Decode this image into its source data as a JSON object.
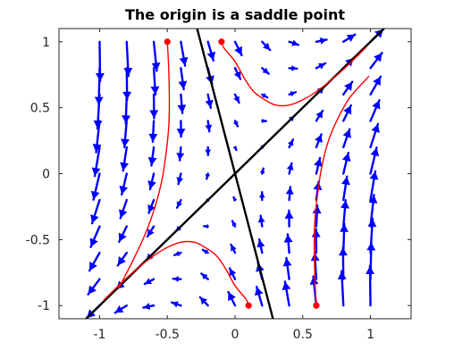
{
  "chart_data": {
    "type": "quiver",
    "title": "The origin is a saddle point",
    "xlabel": "",
    "ylabel": "",
    "xlim": [
      -1.3,
      1.3
    ],
    "ylim": [
      -1.1,
      1.1
    ],
    "grid": false,
    "x_ticks": [
      -1,
      -0.5,
      0,
      0.5,
      1
    ],
    "x_tick_labels": [
      "-1",
      "-0.5",
      "0",
      "0.5",
      "1"
    ],
    "y_ticks": [
      -1,
      -0.5,
      0,
      0.5,
      1
    ],
    "y_tick_labels": [
      "-1",
      "-0.5",
      "0",
      "0.5",
      "1"
    ],
    "vector_field": {
      "color": "#0000ff",
      "x_range": [
        -1.0,
        1.0
      ],
      "y_range": [
        -1.0,
        1.0
      ],
      "grid_size": 11,
      "formula": "dx/dt = x - y, dy/dt = -2x + y - 1.5y"
    },
    "eigenvector_lines": [
      {
        "points": [
          [
            -1.1,
            -1.1
          ],
          [
            1.1,
            1.1
          ]
        ],
        "color": "#000000"
      },
      {
        "points": [
          [
            -0.28,
            1.1
          ],
          [
            0.28,
            -1.1
          ]
        ],
        "color": "#000000"
      }
    ],
    "trajectories": {
      "color": "#ff0000",
      "initial_points": [
        [
          -0.5,
          1
        ],
        [
          -0.1,
          1
        ],
        [
          0.1,
          -1
        ],
        [
          0.6,
          -1
        ]
      ],
      "curves": [
        [
          [
            -0.5,
            1
          ],
          [
            -0.49,
            0.8
          ],
          [
            -0.485,
            0.55
          ],
          [
            -0.49,
            0.35
          ],
          [
            -0.51,
            0.15
          ],
          [
            -0.54,
            -0.05
          ],
          [
            -0.59,
            -0.25
          ],
          [
            -0.66,
            -0.45
          ],
          [
            -0.75,
            -0.65
          ],
          [
            -0.86,
            -0.87
          ]
        ],
        [
          [
            -0.1,
            1
          ],
          [
            -0.08,
            0.95
          ],
          [
            0.0,
            0.85
          ],
          [
            0.07,
            0.72
          ],
          [
            0.14,
            0.62
          ],
          [
            0.22,
            0.56
          ],
          [
            0.3,
            0.52
          ],
          [
            0.4,
            0.52
          ],
          [
            0.52,
            0.57
          ],
          [
            0.65,
            0.66
          ],
          [
            0.8,
            0.79
          ],
          [
            0.97,
            0.96
          ]
        ],
        [
          [
            0.1,
            -1
          ],
          [
            0.08,
            -0.95
          ],
          [
            0.0,
            -0.85
          ],
          [
            -0.07,
            -0.72
          ],
          [
            -0.14,
            -0.62
          ],
          [
            -0.22,
            -0.56
          ],
          [
            -0.3,
            -0.52
          ],
          [
            -0.4,
            -0.52
          ],
          [
            -0.52,
            -0.57
          ],
          [
            -0.65,
            -0.66
          ],
          [
            -0.8,
            -0.79
          ],
          [
            -0.97,
            -0.96
          ]
        ],
        [
          [
            0.6,
            -1
          ],
          [
            0.59,
            -0.8
          ],
          [
            0.585,
            -0.55
          ],
          [
            0.59,
            -0.35
          ],
          [
            0.61,
            -0.15
          ],
          [
            0.64,
            0.05
          ],
          [
            0.69,
            0.25
          ],
          [
            0.76,
            0.42
          ],
          [
            0.85,
            0.58
          ],
          [
            0.99,
            0.74
          ]
        ]
      ]
    }
  }
}
